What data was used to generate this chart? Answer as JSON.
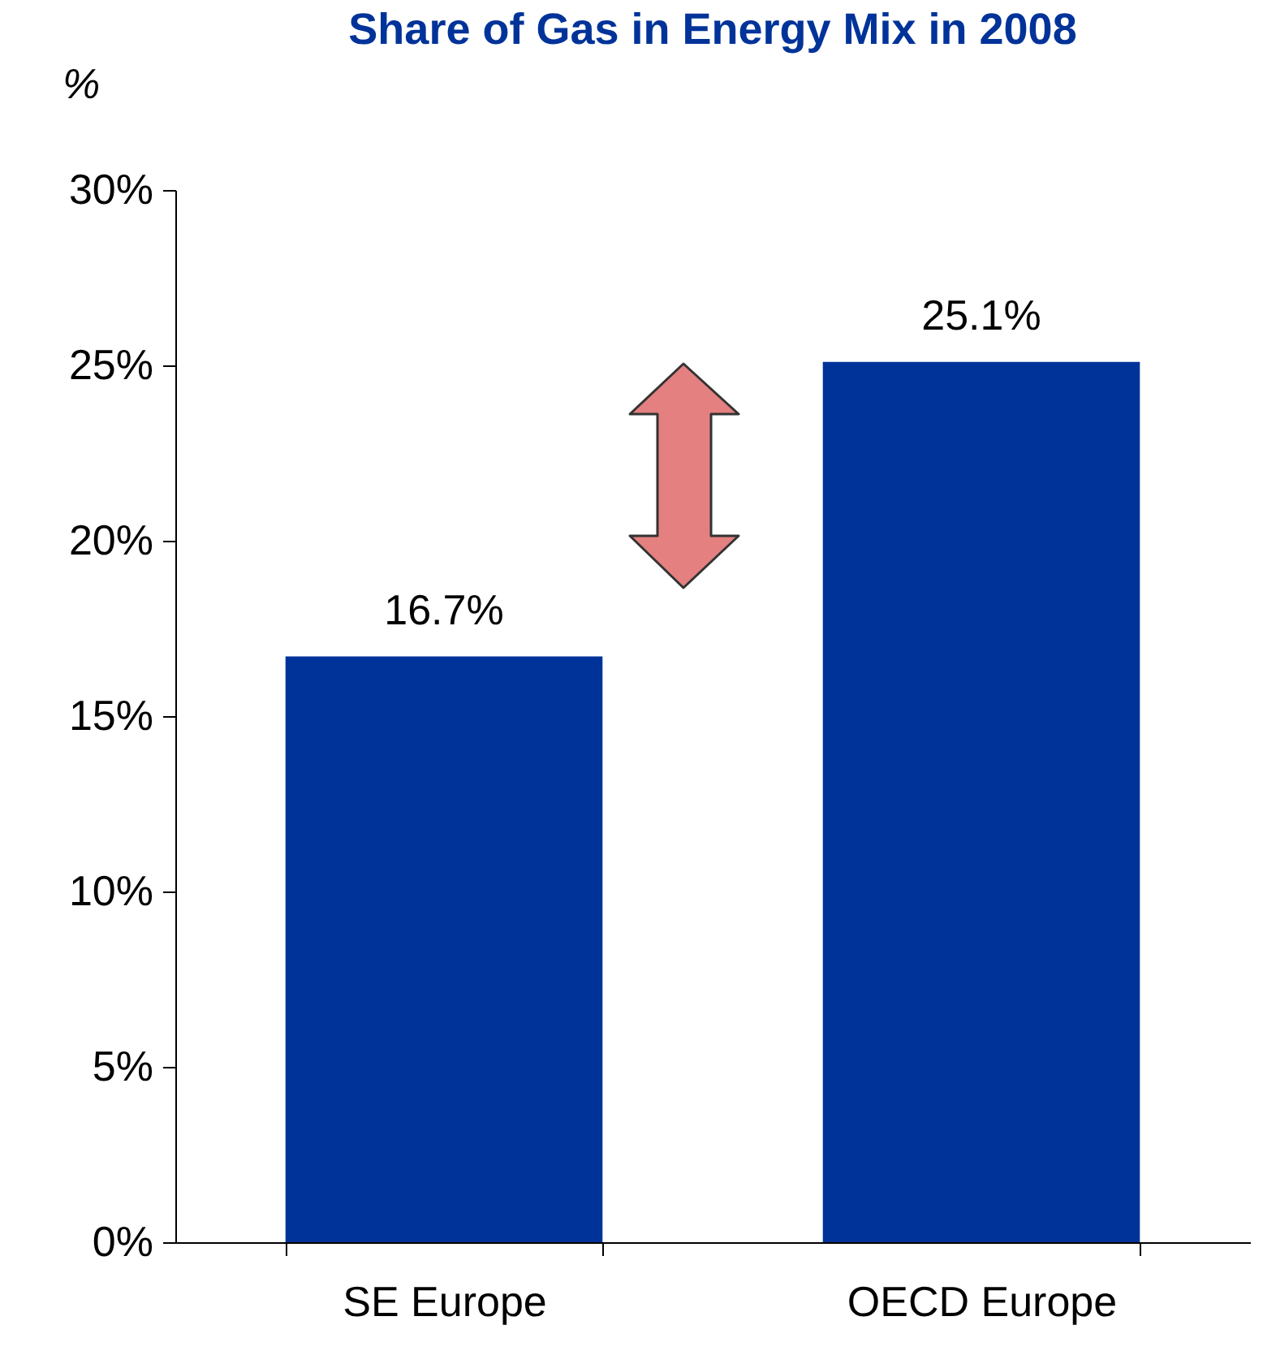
{
  "chart_data": {
    "type": "bar",
    "title": "Share of Gas in Energy Mix in 2008",
    "ylabel": "%",
    "categories": [
      "SE Europe",
      "OECD Europe"
    ],
    "values": [
      16.7,
      25.1
    ],
    "color": "#003399",
    "value_labels": [
      "16.7%",
      "25.1%"
    ],
    "ylim": [
      0,
      30
    ],
    "yticks": [
      {
        "value": 0,
        "label": "0%"
      },
      {
        "value": 5,
        "label": "5%"
      },
      {
        "value": 10,
        "label": "10%"
      },
      {
        "value": 15,
        "label": "15%"
      },
      {
        "value": 20,
        "label": "20%"
      },
      {
        "value": 25,
        "label": "25%"
      },
      {
        "value": 30,
        "label": "30%"
      }
    ],
    "grid": false
  }
}
